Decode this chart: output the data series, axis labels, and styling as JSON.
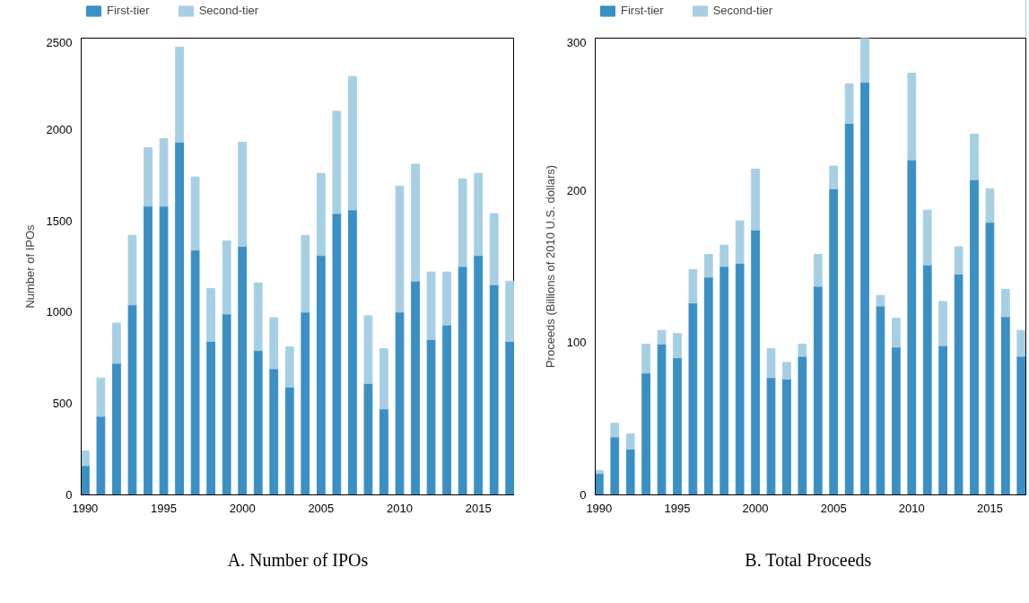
{
  "chart_data": [
    {
      "type": "bar",
      "stacked": true,
      "title": "A. Number of IPOs",
      "ylabel": "Number of IPOs",
      "x": [
        1990,
        1991,
        1992,
        1993,
        1994,
        1995,
        1996,
        1997,
        1998,
        1999,
        2000,
        2001,
        2002,
        2003,
        2004,
        2005,
        2006,
        2007,
        2008,
        2009,
        2010,
        2011,
        2012,
        2013,
        2014,
        2015,
        2016,
        2017
      ],
      "series": [
        {
          "name": "First-tier",
          "color": "#3a8fc4",
          "values": [
            160,
            430,
            720,
            1040,
            1580,
            1580,
            1930,
            1340,
            840,
            990,
            1360,
            790,
            690,
            590,
            1000,
            1310,
            1540,
            1560,
            610,
            470,
            1000,
            1170,
            850,
            930,
            1250,
            1310,
            1150,
            840
          ]
        },
        {
          "name": "Second-tier",
          "color": "#a6cfe4",
          "values": [
            80,
            210,
            220,
            380,
            320,
            370,
            520,
            400,
            290,
            400,
            570,
            370,
            280,
            220,
            420,
            450,
            560,
            730,
            370,
            330,
            690,
            640,
            370,
            290,
            480,
            450,
            390,
            330
          ]
        }
      ],
      "xlim": [
        1989.75,
        2017.3
      ],
      "xticks": [
        1990,
        1995,
        2000,
        2005,
        2010,
        2015
      ],
      "ylim": [
        0,
        2500
      ],
      "yticks": [
        0,
        500,
        1000,
        1500,
        2000,
        2500
      ],
      "legend": "top left",
      "grid": false
    },
    {
      "type": "bar",
      "stacked": true,
      "title": "B.  Total Proceeds",
      "ylabel": "Proceeds (Billions of 2010 U.S. dollars)",
      "x": [
        1990,
        1991,
        1992,
        1993,
        1994,
        1995,
        1996,
        1997,
        1998,
        1999,
        2000,
        2001,
        2002,
        2003,
        2004,
        2005,
        2006,
        2007,
        2008,
        2009,
        2010,
        2011,
        2012,
        2013,
        2014,
        2015,
        2016,
        2017
      ],
      "series": [
        {
          "name": "First-tier",
          "color": "#3a8fc4",
          "values": [
            14,
            38,
            30,
            80,
            99,
            90,
            126,
            143,
            150,
            152,
            174,
            77,
            76,
            91,
            137,
            201,
            244,
            271,
            124,
            97,
            220,
            151,
            98,
            145,
            207,
            179,
            117,
            91
          ]
        },
        {
          "name": "Second-tier",
          "color": "#a6cfe4",
          "values": [
            2,
            9,
            10,
            19,
            9,
            16,
            22,
            15,
            14,
            28,
            40,
            19,
            11,
            8,
            21,
            15,
            26,
            29,
            7,
            19,
            57,
            36,
            29,
            18,
            30,
            22,
            18,
            17
          ]
        }
      ],
      "xlim": [
        1989.75,
        2017.3
      ],
      "xticks": [
        1990,
        1995,
        2000,
        2005,
        2010,
        2015
      ],
      "ylim": [
        0,
        300
      ],
      "yticks": [
        0,
        100,
        200,
        300
      ],
      "legend": "top left",
      "grid": false
    }
  ]
}
